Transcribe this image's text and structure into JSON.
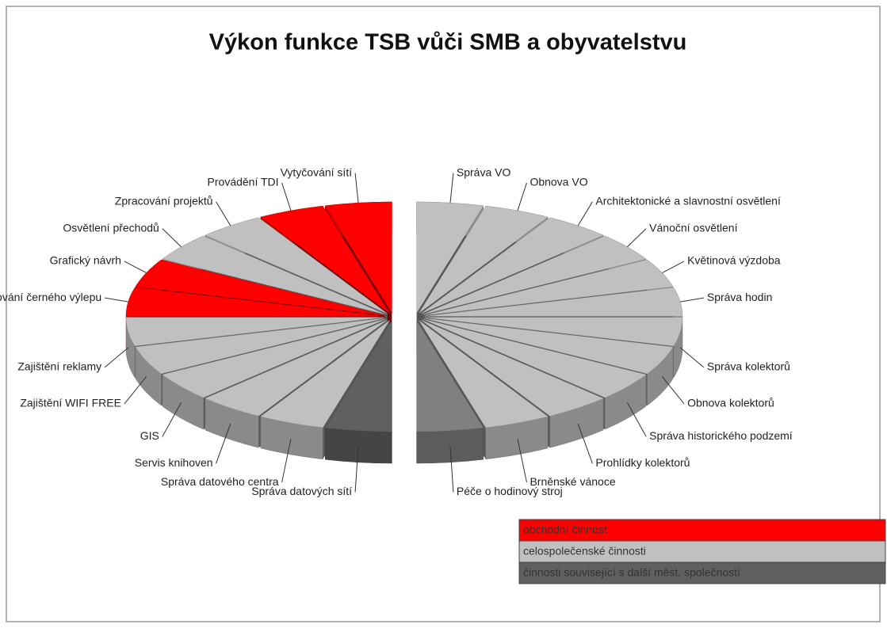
{
  "chart_data": {
    "type": "pie",
    "title": "Výkon funkce TSB vůči SMB a obyvatelstvu",
    "categories": [
      "Správa VO",
      "Obnova VO",
      "Architektonické a slavnostní osvětlení",
      "Vánoční osvětlení",
      "Květinová výzdoba",
      "Správa hodin",
      "Správa kolektorů",
      "Obnova kolektorů",
      "Správa historického podzemí",
      "Prohlídky kolektorů",
      "Brněnské vánoce",
      "Péče o hodinový stroj",
      "Správa datových sítí",
      "Správa datového centra",
      "Servis knihoven",
      "GIS",
      "Zajištění WIFI FREE",
      "Zajištění reklamy",
      "Odstraňování černého výlepu",
      "Grafický návrh",
      "Osvětlení přechodů",
      "Zpracování projektů",
      "Provádění TDI",
      "Vytyčování sítí"
    ],
    "values": [
      1,
      1,
      1,
      1,
      1,
      1,
      1,
      1,
      1,
      1,
      1,
      1,
      1,
      1,
      1,
      1,
      1,
      1,
      1,
      1,
      1,
      1,
      1,
      1
    ],
    "colors": [
      "#c0c0c0",
      "#c0c0c0",
      "#c0c0c0",
      "#c0c0c0",
      "#c0c0c0",
      "#c0c0c0",
      "#c0c0c0",
      "#c0c0c0",
      "#c0c0c0",
      "#c0c0c0",
      "#c0c0c0",
      "#808080",
      "#606060",
      "#c0c0c0",
      "#c0c0c0",
      "#c0c0c0",
      "#c0c0c0",
      "#c0c0c0",
      "#ff0000",
      "#ff0000",
      "#c0c0c0",
      "#c0c0c0",
      "#ff0000",
      "#ff0000"
    ],
    "legend": [
      {
        "name": "obchodní činnost",
        "color": "#ff0000"
      },
      {
        "name": "celospolečenské činnosti",
        "color": "#c0c0c0"
      },
      {
        "name": "činnosti související s další měst. společností",
        "color": "#606060"
      }
    ]
  }
}
